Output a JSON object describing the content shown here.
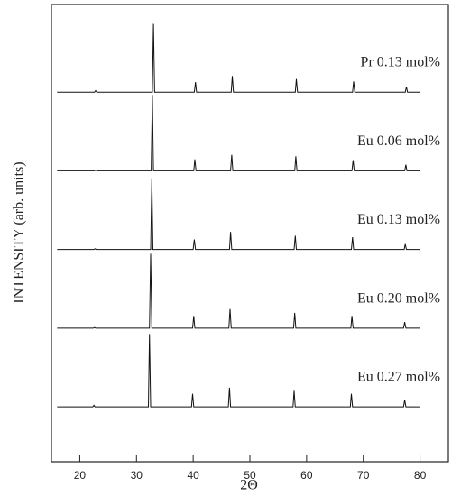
{
  "chart_data": {
    "type": "line",
    "xlabel": "2Θ",
    "ylabel": "INTENSITY (arb. units)",
    "xlim": [
      15,
      85
    ],
    "xticks": [
      20,
      30,
      40,
      50,
      60,
      70,
      80
    ],
    "ylim": [
      0,
      100
    ],
    "series": [
      {
        "name": "Pr 0.13 mol%",
        "color": "#111",
        "x": [
          16,
          22.6,
          22.8,
          23,
          32.8,
          33,
          33.2,
          40.2,
          40.4,
          40.6,
          46.7,
          46.9,
          47.1,
          58,
          58.2,
          58.4,
          68.1,
          68.3,
          68.5,
          77.4,
          77.6,
          77.8,
          80
        ],
        "values": [
          1,
          1,
          3,
          1,
          1,
          90,
          1,
          1,
          14,
          1,
          1,
          22,
          1,
          1,
          18,
          1,
          1,
          15,
          1,
          1,
          8,
          1,
          1
        ]
      },
      {
        "name": "Eu 0.06 mol%",
        "color": "#111",
        "x": [
          16,
          22.6,
          22.8,
          23,
          32.6,
          32.8,
          33,
          40.1,
          40.3,
          40.5,
          46.6,
          46.8,
          47,
          57.9,
          58.1,
          58.3,
          68,
          68.2,
          68.4,
          77.3,
          77.5,
          77.7,
          80
        ],
        "values": [
          1,
          1,
          2,
          1,
          1,
          100,
          1,
          1,
          16,
          1,
          1,
          22,
          1,
          1,
          20,
          1,
          1,
          15,
          1,
          1,
          9,
          1,
          1
        ]
      },
      {
        "name": "Eu 0.13 mol%",
        "color": "#111",
        "x": [
          16,
          22.5,
          22.7,
          22.9,
          32.5,
          32.7,
          32.9,
          40,
          40.2,
          40.4,
          46.4,
          46.6,
          46.8,
          57.8,
          58,
          58.2,
          67.9,
          68.1,
          68.3,
          77.2,
          77.4,
          77.6,
          80
        ],
        "values": [
          1,
          1,
          2,
          1,
          1,
          94,
          1,
          1,
          14,
          1,
          1,
          24,
          1,
          1,
          19,
          1,
          1,
          17,
          1,
          1,
          8,
          1,
          1
        ]
      },
      {
        "name": "Eu 0.20 mol%",
        "color": "#111",
        "x": [
          16,
          22.4,
          22.6,
          22.8,
          32.3,
          32.5,
          32.7,
          39.9,
          40.1,
          40.3,
          46.3,
          46.5,
          46.7,
          57.7,
          57.9,
          58.1,
          67.8,
          68,
          68.2,
          77.1,
          77.3,
          77.5,
          80
        ],
        "values": [
          1,
          1,
          2,
          1,
          1,
          98,
          1,
          1,
          17,
          1,
          1,
          26,
          1,
          1,
          21,
          1,
          1,
          17,
          1,
          1,
          9,
          1,
          1
        ]
      },
      {
        "name": "Eu 0.27 mol%",
        "color": "#111",
        "x": [
          16,
          22.3,
          22.5,
          22.7,
          32.1,
          32.3,
          32.5,
          39.7,
          39.9,
          40.1,
          46.2,
          46.4,
          46.6,
          57.6,
          57.8,
          58,
          67.7,
          67.9,
          68.1,
          77.1,
          77.3,
          77.5,
          80
        ],
        "values": [
          1,
          1,
          3,
          1,
          1,
          96,
          1,
          1,
          18,
          1,
          1,
          26,
          1,
          1,
          22,
          1,
          1,
          18,
          1,
          1,
          10,
          1,
          1
        ]
      }
    ]
  }
}
